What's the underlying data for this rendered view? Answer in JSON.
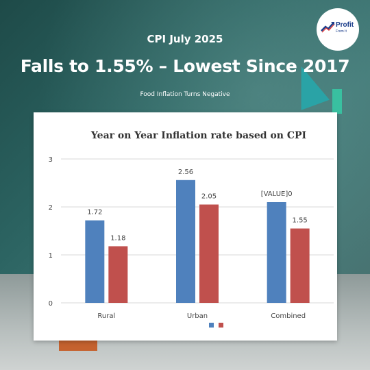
{
  "header": {
    "subtitle": "CPI July 2025",
    "headline": "Falls to 1.55% – Lowest Since 2017",
    "tagline": "Food Inflation Turns Negative"
  },
  "logo": {
    "brand_line1": "Profit",
    "brand_line2": "From It",
    "icon": "rising-chart-icon"
  },
  "colors": {
    "series_1": "#4f81bd",
    "series_2": "#c0504d",
    "background": "#2c6462",
    "title_text": "#ffffff"
  },
  "chart_data": {
    "type": "bar",
    "title": "Year on Year Inflation rate based on CPI",
    "categories": [
      "Rural",
      "Urban",
      "Combined"
    ],
    "series": [
      {
        "values": [
          1.72,
          2.56,
          2.1
        ],
        "labels": [
          "1.72",
          "2.56",
          "[VALUE]0"
        ],
        "color": "#4f81bd"
      },
      {
        "values": [
          1.18,
          2.05,
          1.55
        ],
        "labels": [
          "1.18",
          "2.05",
          "1.55"
        ],
        "color": "#c0504d"
      }
    ],
    "ylim": [
      0,
      3
    ],
    "yticks": [
      "0",
      "1",
      "2",
      "3"
    ],
    "grid": true,
    "legend": "bottom",
    "xlabel": "",
    "ylabel": ""
  }
}
